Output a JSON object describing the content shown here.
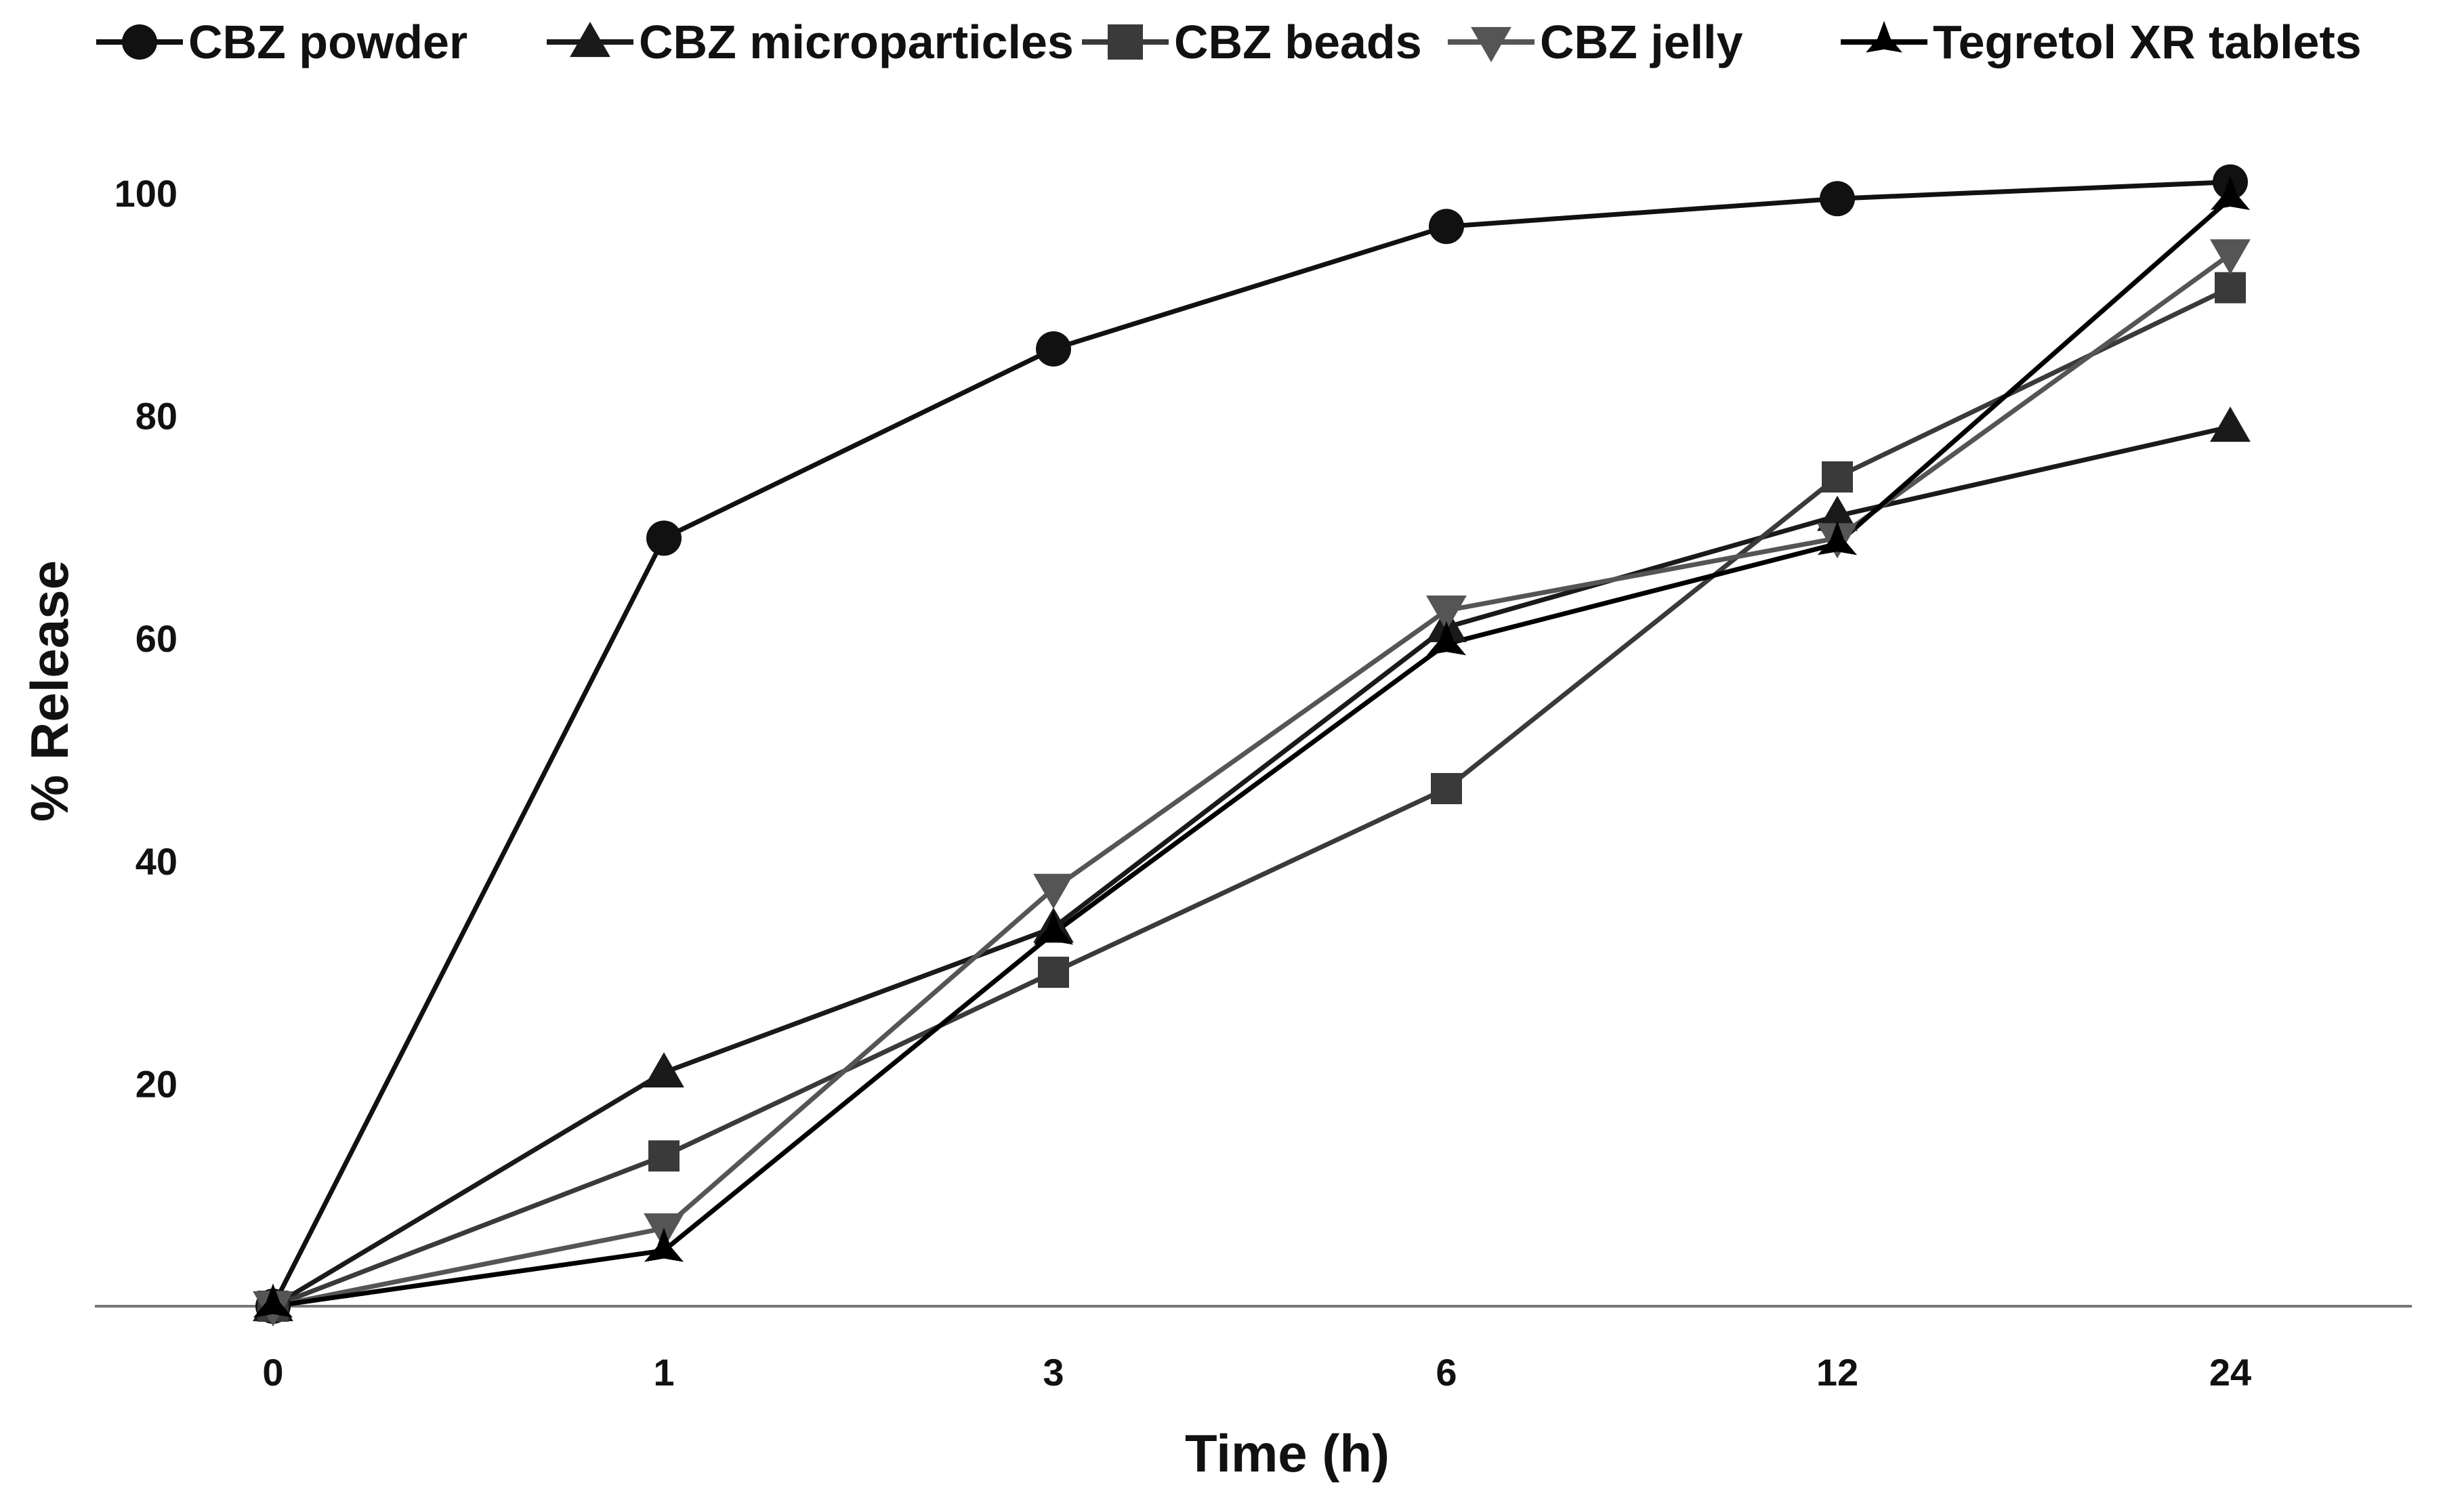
{
  "chart_data": {
    "type": "line",
    "title": "",
    "xlabel": "Time (h)",
    "ylabel": "% Release",
    "categories": [
      "0",
      "1",
      "3",
      "6",
      "12",
      "24"
    ],
    "yticks": [
      "20",
      "40",
      "60",
      "80",
      "100"
    ],
    "ylim": [
      0,
      100
    ],
    "grid": false,
    "legend_position": "top",
    "series": [
      {
        "name": "CBZ powder",
        "marker": "circle",
        "color": "#111111",
        "values": [
          0,
          69,
          86,
          97,
          99.5,
          101
        ]
      },
      {
        "name": "CBZ microparticles",
        "marker": "triangle-up",
        "color": "#1a1a1a",
        "values": [
          0,
          21,
          34,
          61,
          71,
          79
        ]
      },
      {
        "name": "CBZ beads",
        "marker": "square",
        "color": "#3a3a3a",
        "values": [
          0,
          13.5,
          30,
          46.5,
          74.5,
          91.5
        ]
      },
      {
        "name": "CBZ jelly",
        "marker": "triangle-down",
        "color": "#555555",
        "values": [
          0,
          7,
          37.5,
          62.5,
          69,
          94.5
        ]
      },
      {
        "name": "Tegretol XR tablets",
        "marker": "star",
        "color": "#000000",
        "values": [
          0,
          5,
          33.5,
          59.5,
          68.5,
          99.5
        ]
      }
    ]
  }
}
